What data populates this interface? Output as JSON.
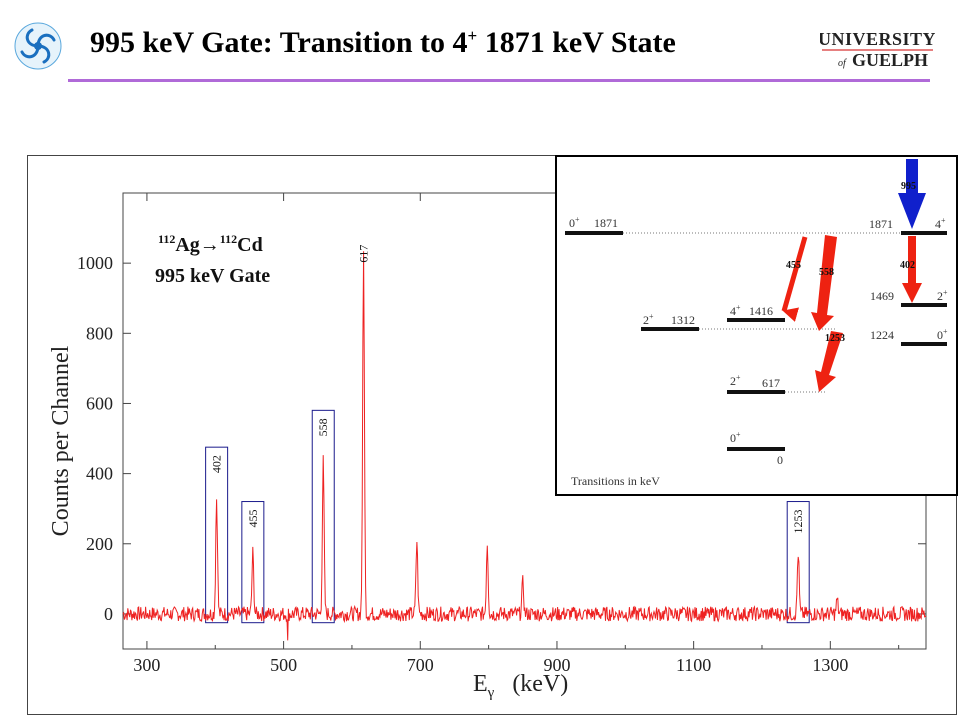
{
  "slide": {
    "title_main": "995 keV Gate: Transition to 4",
    "title_sup": "+",
    "title_tail": " 1871 keV State",
    "university_logo_text": [
      "UNIVERSITY",
      "of",
      "GUELPH"
    ],
    "logo_icon": "swirl-logo-icon"
  },
  "colors": {
    "spectrum": "#ee2222",
    "gate_arrow": "#1020cc",
    "transition_arrow": "#ee2211",
    "title_rule": "#b06ad8",
    "peak_box": "#1a1a8c"
  },
  "chart_data": {
    "type": "line",
    "title": "",
    "xlabel": "E",
    "xlabel_sub": "γ",
    "xlabel_unit": "(keV)",
    "ylabel": "Counts per Channel",
    "xlim": [
      265,
      1440
    ],
    "ylim": [
      -100,
      1200
    ],
    "x_ticks": [
      300,
      500,
      700,
      900,
      1100,
      1300
    ],
    "y_ticks": [
      0,
      200,
      400,
      600,
      800,
      1000
    ],
    "grid": false,
    "annotation": {
      "reaction_A1": "112",
      "reaction_el1": "Ag",
      "reaction_arrow": "→",
      "reaction_A2": "112",
      "reaction_el2": "Cd",
      "gate_label": "995 keV Gate"
    },
    "series": [
      {
        "peaks": [
          {
            "energy": 402,
            "counts": 330
          },
          {
            "energy": 455,
            "counts": 175
          },
          {
            "energy": 558,
            "counts": 435
          },
          {
            "energy": 617,
            "counts": 1030
          },
          {
            "energy": 695,
            "counts": 210
          },
          {
            "energy": 798,
            "counts": 205
          },
          {
            "energy": 850,
            "counts": 90
          },
          {
            "energy": 1253,
            "counts": 175
          },
          {
            "energy": 1310,
            "counts": 40
          }
        ]
      }
    ],
    "peak_labels": [
      {
        "energy": 402,
        "label": "402",
        "boxed": true
      },
      {
        "energy": 455,
        "label": "455",
        "boxed": true
      },
      {
        "energy": 558,
        "label": "558",
        "boxed": true
      },
      {
        "energy": 617,
        "label": "617",
        "boxed": false
      },
      {
        "energy": 1253,
        "label": "1253",
        "boxed": true
      }
    ]
  },
  "level_scheme": {
    "levels": [
      {
        "spin": "0",
        "parity": "+",
        "energy": "1871"
      },
      {
        "spin": "2",
        "parity": "+",
        "energy": "1312"
      },
      {
        "spin": "4",
        "parity": "+",
        "energy": "1416"
      },
      {
        "spin": "2",
        "parity": "+",
        "energy": "617"
      },
      {
        "spin": "0",
        "parity": "+",
        "energy": "0"
      },
      {
        "spin": "4",
        "parity": "+",
        "energy": "1871"
      },
      {
        "spin": "2",
        "parity": "+",
        "energy": "1469"
      },
      {
        "spin": "0",
        "parity": "+",
        "energy": "1224"
      }
    ],
    "transitions": [
      "995",
      "455",
      "558",
      "402",
      "1253"
    ],
    "footer": "Transitions in keV"
  }
}
